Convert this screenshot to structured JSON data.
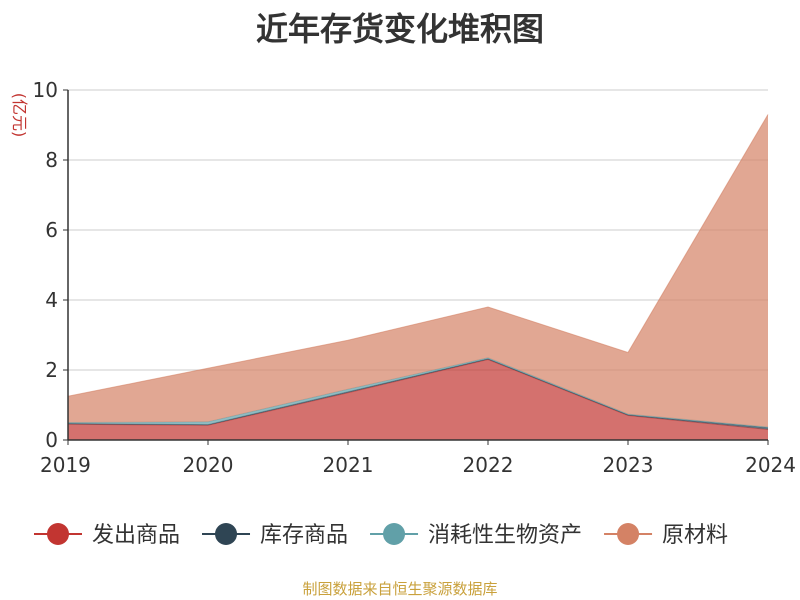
{
  "chart_data": {
    "type": "area",
    "title": "近年存货变化堆积图",
    "ylabel": "(亿元)",
    "xlabel": "",
    "x": [
      "2019",
      "2020",
      "2021",
      "2022",
      "2023",
      "2024"
    ],
    "ylim": [
      0,
      10
    ],
    "yticks": [
      0,
      2,
      4,
      6,
      8,
      10
    ],
    "stacked": true,
    "grid": true,
    "legend_position": "bottom",
    "series": [
      {
        "name": "发出商品",
        "color": "#c23531",
        "values": [
          0.45,
          0.42,
          1.35,
          2.3,
          0.7,
          0.3
        ]
      },
      {
        "name": "库存商品",
        "color": "#2f4554",
        "values": [
          0.02,
          0.02,
          0.03,
          0.02,
          0.02,
          0.05
        ]
      },
      {
        "name": "消耗性生物资产",
        "color": "#61a0a8",
        "values": [
          0.03,
          0.08,
          0.07,
          0.03,
          0.02,
          0.02
        ]
      },
      {
        "name": "原材料",
        "color": "#d48265",
        "values": [
          0.75,
          1.53,
          1.4,
          1.45,
          1.76,
          8.93
        ]
      }
    ]
  },
  "source_note": "制图数据来自恒生聚源数据库"
}
